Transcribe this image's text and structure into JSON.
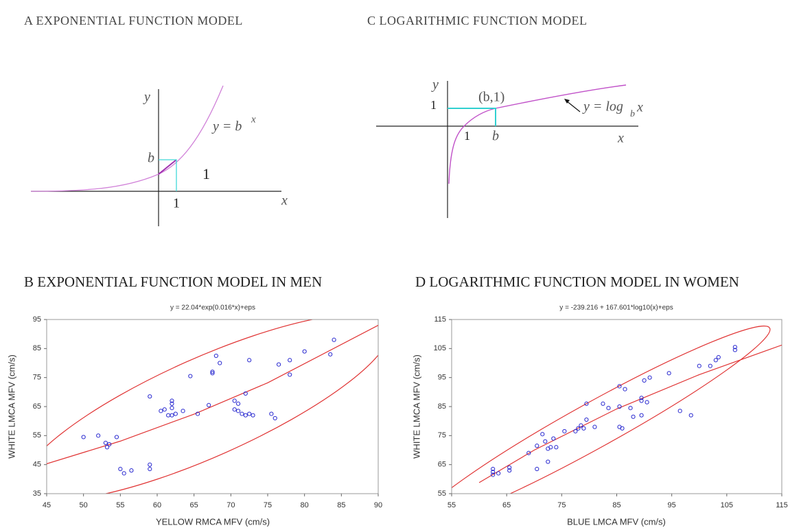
{
  "diagrams": [
    {
      "title": "A  EXPONENTIAL FUNCTION MODEL",
      "y_axis": "y",
      "x_axis": "x",
      "equation": "y = b",
      "exponent": "x",
      "b_label": "b",
      "one_x": "1",
      "one_side": "1"
    },
    {
      "title": "C  LOGARITHMIC FUNCTION MODEL",
      "y_axis": "y",
      "x_axis": "x",
      "equation": "y = log",
      "base": "b",
      "argument": "x",
      "one_y": "1",
      "point": "(b,1)",
      "one_x": "1",
      "b_label": "b"
    }
  ],
  "chart_data": [
    {
      "type": "scatter",
      "panel_title": "B  EXPONENTIAL FUNCTION MODEL IN MEN",
      "title": "y = 22.04*exp(0.016*x)+eps",
      "x_label": "YELLOW RMCA MFV (cm/s)",
      "y_label": "WHITE LMCA MFV (cm/s)",
      "color": "#2a2ad0",
      "x": [
        50,
        52,
        53,
        53.2,
        53.5,
        54.5,
        55,
        55.5,
        56.5,
        59,
        59,
        59,
        60.5,
        61,
        61.5,
        62,
        62,
        62,
        62,
        62.5,
        63.5,
        64.5,
        65.5,
        67,
        67.5,
        67.5,
        68,
        68.5,
        70.5,
        70.5,
        71,
        71,
        71.5,
        72,
        72,
        72.5,
        72.5,
        73,
        75.5,
        76,
        76.5,
        78,
        78,
        80,
        83.5,
        84
      ],
      "values": [
        54.5,
        55,
        52.5,
        51,
        52,
        54.5,
        43.5,
        42,
        43,
        68.5,
        45,
        43.5,
        63.5,
        64,
        62,
        67,
        66,
        64.5,
        62,
        62.5,
        63.5,
        75.5,
        62.5,
        65.5,
        76.5,
        77,
        82.5,
        80,
        67,
        64,
        66,
        63.5,
        62.5,
        69.5,
        62,
        81,
        62.5,
        62,
        62.5,
        61,
        79.5,
        81,
        76,
        84,
        83,
        88
      ],
      "fit": {
        "color": "#e03232",
        "x": [
          45,
          55,
          65,
          75,
          90
        ],
        "values": [
          45.3,
          53.1,
          62.4,
          73.2,
          93
        ]
      },
      "xlim": [
        45,
        90
      ],
      "ylim": [
        35,
        95
      ],
      "xticks": [
        45,
        50,
        55,
        60,
        65,
        70,
        75,
        80,
        85,
        90
      ],
      "yticks": [
        35,
        45,
        55,
        65,
        75,
        85,
        95
      ]
    },
    {
      "type": "scatter",
      "panel_title": "D  LOGARITHMIC FUNCTION MODEL IN WOMEN",
      "title": "y = -239.216 + 167.601*log10(x)+eps",
      "x_label": "BLUE LMCA MFV (cm/s)",
      "y_label": "WHITE LMCA MFV (cm/s)",
      "color": "#2a2ad0",
      "x": [
        62.5,
        62.5,
        62.5,
        63.5,
        65.5,
        65.5,
        69,
        70.5,
        70.5,
        71.5,
        72,
        72.5,
        72.5,
        73,
        73.5,
        74,
        75.5,
        77.5,
        78,
        78.5,
        79,
        79.5,
        79.5,
        81,
        82.5,
        83.5,
        85.5,
        85.5,
        85.5,
        86,
        86.5,
        87.5,
        88,
        89.5,
        89.5,
        89.5,
        90,
        90.5,
        91,
        94.5,
        96.5,
        98.5,
        100,
        102,
        103,
        103.5,
        106.5,
        106.5
      ],
      "values": [
        63.5,
        62.5,
        61.5,
        62,
        64,
        63,
        69,
        71.5,
        63.5,
        75.5,
        73,
        70.5,
        66,
        71,
        74,
        71,
        76.5,
        76.5,
        77.5,
        78.5,
        77.5,
        86,
        80.5,
        78,
        86,
        84.5,
        92,
        85,
        78,
        77.5,
        91,
        84.5,
        81.5,
        88,
        87,
        82,
        94,
        86.5,
        95,
        96.5,
        83.5,
        82,
        99,
        99,
        101,
        102,
        105.5,
        104.5
      ],
      "fit": {
        "color": "#e03232",
        "x": [
          60,
          70,
          85,
          100,
          115
        ],
        "values": [
          58.8,
          70,
          84.2,
          96,
          106.2
        ]
      },
      "xlim": [
        55,
        115
      ],
      "ylim": [
        55,
        115
      ],
      "xticks": [
        55,
        65,
        75,
        85,
        95,
        105,
        115
      ],
      "yticks": [
        55,
        65,
        75,
        85,
        95,
        105,
        115
      ]
    }
  ]
}
